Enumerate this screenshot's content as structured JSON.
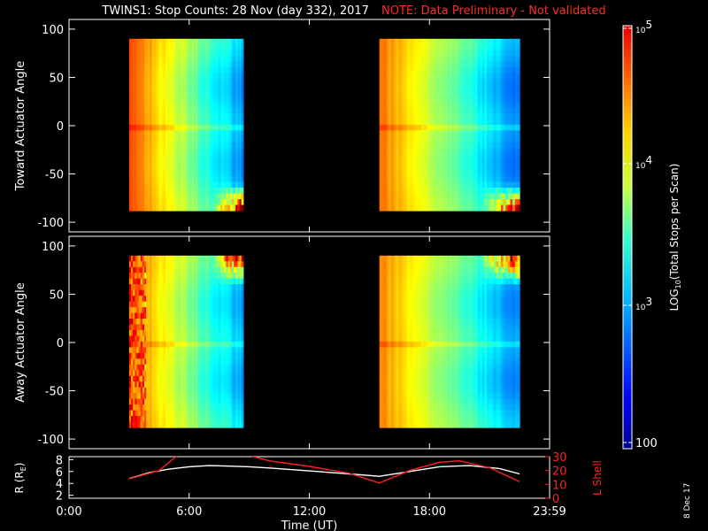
{
  "header": {
    "title": "TWINS1: Stop Counts: 28 Nov (day 332), 2017",
    "note": "NOTE: Data Preliminary - Not validated"
  },
  "stamp": "8 Dec 17",
  "chart_data": [
    {
      "type": "heatmap",
      "ylabel": "Toward Actuator Angle",
      "yticks": [
        "100",
        "50",
        "0",
        "-50",
        "-100"
      ],
      "ylim": [
        -110,
        110
      ],
      "data_angle_range": [
        -88,
        90
      ],
      "segments_ut": [
        [
          3.0,
          8.7
        ],
        [
          15.5,
          22.5
        ]
      ]
    },
    {
      "type": "heatmap",
      "ylabel": "Away Actuator Angle",
      "yticks": [
        "100",
        "50",
        "0",
        "-50",
        "-100"
      ],
      "ylim": [
        -110,
        110
      ],
      "data_angle_range": [
        -88,
        90
      ],
      "segments_ut": [
        [
          3.0,
          8.7
        ],
        [
          15.5,
          22.5
        ]
      ]
    },
    {
      "type": "line",
      "xlabel": "Time (UT)",
      "xticks": [
        "0:00",
        "6:00",
        "12:00",
        "18:00",
        "23:59"
      ],
      "xlim": [
        0,
        24
      ],
      "ylabel_left": "R (R",
      "ylabel_left_sub": "E",
      "ylabel_left_close": ")",
      "yticks_left": [
        "8",
        "6",
        "4",
        "2"
      ],
      "ylim_left": [
        1.5,
        8.5
      ],
      "ylabel_right": "L Shell",
      "yticks_right": [
        "30",
        "20",
        "10",
        "0"
      ],
      "ylim_right": [
        0,
        30
      ],
      "series": [
        {
          "axis": "left",
          "color": "#ffffff",
          "x": [
            3.0,
            4.0,
            5.0,
            6.0,
            7.0,
            8.0,
            9.0,
            10.0,
            12.0,
            14.0,
            15.5,
            17.0,
            18.5,
            20.0,
            21.5,
            22.5
          ],
          "y": [
            4.8,
            5.8,
            6.4,
            6.8,
            7.0,
            6.9,
            6.8,
            6.6,
            6.1,
            5.6,
            5.2,
            6.0,
            6.8,
            7.0,
            6.5,
            5.6
          ]
        },
        {
          "axis": "right",
          "color": "#ff2020",
          "x": [
            3.0,
            4.5,
            5.0,
            5.5
          ],
          "y": [
            14,
            20,
            26,
            32
          ]
        },
        {
          "axis": "right",
          "color": "#ff2020",
          "x": [
            8.7,
            10.0,
            12.0,
            14.0,
            15.5,
            17.0,
            18.5,
            19.5,
            21.0,
            22.5
          ],
          "y": [
            32,
            27,
            23,
            18,
            11,
            20,
            26,
            27,
            22,
            12
          ]
        }
      ]
    }
  ],
  "colorbar": {
    "label": "LOG",
    "label_sub": "10",
    "label_rest": "(Total Stops per Scan)",
    "ticks": [
      {
        "text": "10",
        "sup": "5"
      },
      {
        "text": "10",
        "sup": "4"
      },
      {
        "text": "10",
        "sup": "3"
      },
      {
        "text": "100",
        "sup": ""
      }
    ]
  }
}
